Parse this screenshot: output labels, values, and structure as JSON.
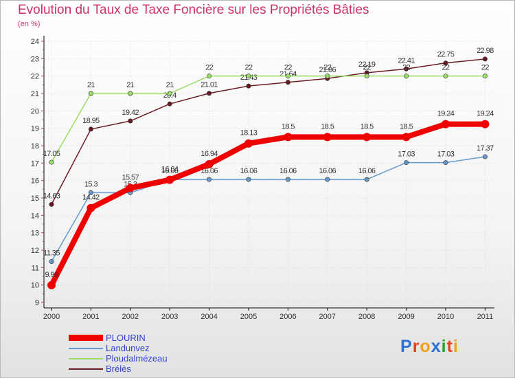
{
  "title": "Evolution du Taux de Taxe Foncière sur les Propriétés Bâties",
  "subtitle": "(en %)",
  "logo": {
    "text": "Proxiti",
    "letters": [
      "P",
      "r",
      "o",
      "x",
      "i",
      "t",
      "i"
    ],
    "colors": [
      "#2b6fd6",
      "#e8401c",
      "#f0a020",
      "#2b6fd6",
      "#2ca02c",
      "#e8401c",
      "#f0a020"
    ]
  },
  "chart_data": {
    "type": "line",
    "title": "Evolution du Taux de Taxe Foncière sur les Propriétés Bâties",
    "ylabel": "(en %)",
    "xlabel": "",
    "ylim": [
      9,
      24
    ],
    "yticks": [
      "9",
      "10",
      "11",
      "12",
      "13",
      "14",
      "15",
      "16",
      "17",
      "18",
      "19",
      "20",
      "21",
      "22",
      "23",
      "24"
    ],
    "categories": [
      "2000",
      "2001",
      "2002",
      "2003",
      "2004",
      "2005",
      "2006",
      "2007",
      "2008",
      "2009",
      "2010",
      "2011"
    ],
    "series": [
      {
        "name": "Brélès",
        "color": "#6b1a24",
        "values": [
          14.63,
          18.95,
          19.42,
          20.4,
          21.01,
          21.43,
          21.64,
          21.86,
          22.19,
          22.41,
          22.75,
          22.98
        ],
        "labels": [
          "14.63",
          "18.95",
          "19.42",
          "20.4",
          "21.01",
          "21.43",
          "21.64",
          "21.86",
          "22.19",
          "22.41",
          "22.75",
          "22.98"
        ]
      },
      {
        "name": "Ploudalmézeau",
        "color": "#99dd66",
        "values": [
          17.05,
          21,
          21,
          21,
          22,
          22,
          22,
          22,
          22,
          22,
          22,
          22
        ],
        "labels": [
          "17.05",
          "21",
          "21",
          "21",
          "22",
          "22",
          "22",
          "22",
          "22",
          "22",
          "22",
          "22"
        ]
      },
      {
        "name": "Landunvez",
        "color": "#6699cc",
        "values": [
          11.35,
          15.3,
          15.3,
          16.06,
          16.06,
          16.06,
          16.06,
          16.06,
          16.06,
          17.03,
          17.03,
          17.37
        ],
        "labels": [
          "11.35",
          "15.3",
          "15.3",
          "16.06",
          "16.06",
          "16.06",
          "16.06",
          "16.06",
          "16.06",
          "17.03",
          "17.03",
          "17.37"
        ]
      },
      {
        "name": "PLOURIN",
        "color": "#ee0000",
        "values": [
          9.99,
          14.42,
          15.57,
          16.04,
          16.94,
          18.13,
          18.5,
          18.5,
          18.5,
          18.5,
          19.24,
          19.24
        ],
        "labels": [
          "9.99",
          "14.42",
          "15.57",
          "16.04",
          "16.94",
          "18.13",
          "18.5",
          "18.5",
          "18.5",
          "18.5",
          "19.24",
          "19.24"
        ]
      }
    ],
    "legend": [
      "PLOURIN",
      "Landunvez",
      "Ploudalmézeau",
      "Brélès"
    ],
    "legend_position": "bottom-left"
  }
}
